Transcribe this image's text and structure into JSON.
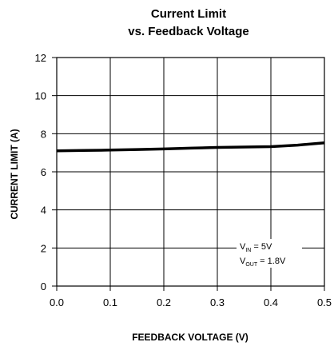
{
  "chart_data": {
    "type": "line",
    "title": "Current Limit",
    "subtitle": "vs. Feedback Voltage",
    "xlabel": "FEEDBACK VOLTAGE (V)",
    "ylabel": "CURRENT LIMIT (A)",
    "xlim": [
      0,
      0.5
    ],
    "ylim": [
      0,
      12
    ],
    "x_ticks": [
      "0.0",
      "0.1",
      "0.2",
      "0.3",
      "0.4",
      "0.5"
    ],
    "y_ticks": [
      "0",
      "2",
      "4",
      "6",
      "8",
      "10",
      "12"
    ],
    "grid": true,
    "series": [
      {
        "x": [
          0.0,
          0.05,
          0.1,
          0.15,
          0.2,
          0.25,
          0.3,
          0.35,
          0.4,
          0.45,
          0.5
        ],
        "values": [
          7.1,
          7.12,
          7.14,
          7.17,
          7.2,
          7.24,
          7.28,
          7.3,
          7.32,
          7.4,
          7.52
        ]
      }
    ],
    "annotation": {
      "line1": {
        "prefix": "V",
        "sub": "IN",
        "suffix": " = 5V"
      },
      "line2": {
        "prefix": "V",
        "sub": "OUT",
        "suffix": " = 1.8V"
      }
    }
  }
}
